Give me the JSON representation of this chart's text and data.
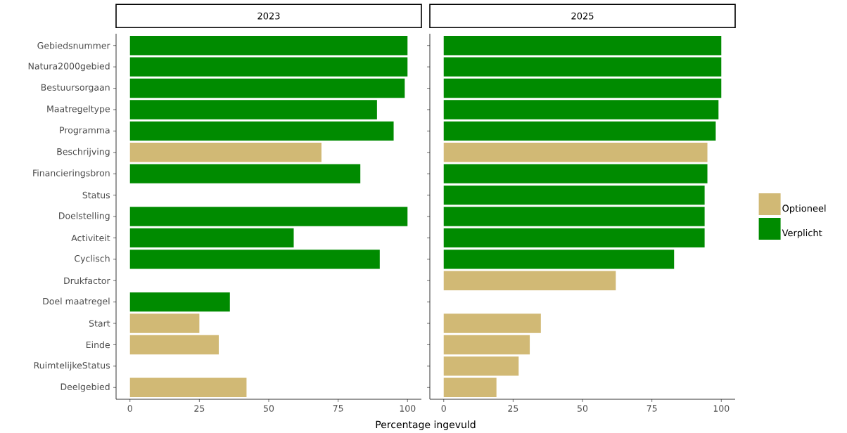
{
  "chart_data": [
    {
      "type": "bar",
      "orientation": "horizontal",
      "title": "2023",
      "xlabel": "Percentage ingevuld",
      "categories": [
        "Gebiedsnummer",
        "Natura2000gebied",
        "Bestuursorgaan",
        "Maatregeltype",
        "Programma",
        "Beschrijving",
        "Financieringsbron",
        "Status",
        "Doelstelling",
        "Activiteit",
        "Cyclisch",
        "Drukfactor",
        "Doel maatregel",
        "Start",
        "Einde",
        "RuimtelijkeStatus",
        "Deelgebied"
      ],
      "series": [
        {
          "color": "#d1b975",
          "values": [
            null,
            null,
            null,
            null,
            null,
            69,
            null,
            null,
            null,
            null,
            null,
            null,
            null,
            25,
            32,
            null,
            42
          ]
        },
        {
          "color": "#008b00",
          "values": [
            100,
            100,
            99,
            89,
            95,
            null,
            83,
            null,
            100,
            59,
            90,
            null,
            36,
            null,
            null,
            null,
            null
          ]
        }
      ],
      "xlim": [
        -5,
        105
      ],
      "xticks": [
        0,
        25,
        50,
        75,
        100
      ],
      "grid": false
    },
    {
      "type": "bar",
      "orientation": "horizontal",
      "title": "2025",
      "categories": [
        null,
        null,
        null,
        null,
        null,
        null,
        null,
        null,
        null,
        null,
        null,
        null,
        null,
        null,
        null,
        null,
        null
      ],
      "series": [
        {
          "name": "Optioneel",
          "color": "#d1b975",
          "values": [
            null,
            null,
            null,
            null,
            null,
            95,
            null,
            null,
            null,
            null,
            null,
            62,
            null,
            35,
            31,
            27,
            19
          ]
        },
        {
          "name": "Verplicht",
          "color": "#008b00",
          "values": [
            100,
            100,
            100,
            99,
            98,
            null,
            95,
            94,
            94,
            94,
            83,
            null,
            null,
            null,
            null,
            null,
            null
          ]
        }
      ],
      "xlim": [
        -5,
        105
      ],
      "xticks": [
        0,
        25,
        50,
        75,
        100
      ],
      "grid": false,
      "tick_labels": "x",
      "legend": "right"
    }
  ]
}
